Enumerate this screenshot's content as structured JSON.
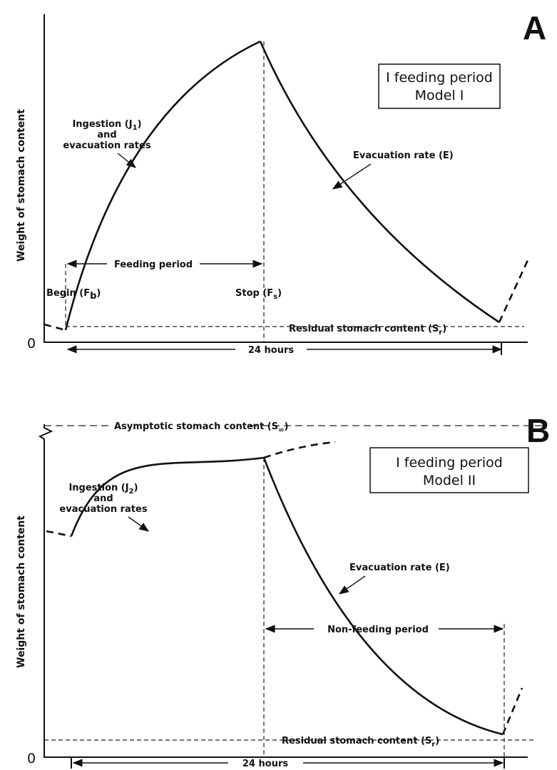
{
  "panel_a": {
    "letter": "A",
    "y_label": "Weight of stomach content",
    "origin": "0",
    "box": [
      "I feeding period",
      "Model I"
    ],
    "ingestion": {
      "text": "Ingestion (J",
      "sub": "1",
      "end": ")"
    },
    "and": "and",
    "evac_rates": "evacuation rates",
    "evacuation": "Evacuation rate (E)",
    "feeding_period": "Feeding period",
    "begin": {
      "text": "Begin (F",
      "sub": "b",
      "end": ")"
    },
    "stop": {
      "text": "Stop (F",
      "sub": "s",
      "end": ")"
    },
    "residual": {
      "text": "Residual stomach content (S",
      "sub": "r",
      "end": ")"
    },
    "duration": "24 hours"
  },
  "panel_b": {
    "letter": "B",
    "y_label": "Weight of stomach content",
    "origin": "0",
    "asymptotic": {
      "text": "Asymptotic stomach content (S",
      "sub": "∞",
      "end": ")"
    },
    "box": [
      "I feeding period",
      "Model II"
    ],
    "ingestion": {
      "text": "Ingestion (J",
      "sub": "2",
      "end": ")"
    },
    "and": "and",
    "evac_rates": "evacuation rates",
    "evacuation": "Evacuation rate (E)",
    "non_feeding_period": "Non-feeding period",
    "residual": {
      "text": "Residual stomach content (S",
      "sub": "r",
      "end": ")"
    },
    "duration": "24 hours"
  }
}
